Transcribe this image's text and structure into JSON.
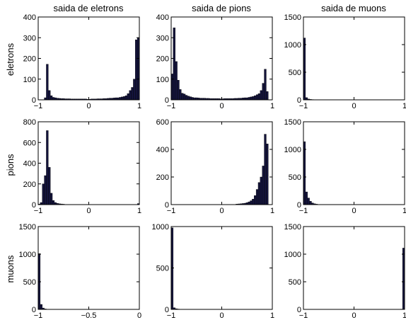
{
  "figure": {
    "col_titles": [
      "saida de eletrons",
      "saida de pions",
      "saida de muons"
    ],
    "row_labels": [
      "eletrons",
      "pions",
      "muons"
    ]
  },
  "chart_data": [
    {
      "type": "bar",
      "row": 0,
      "col": 0,
      "title": "saida de eletrons",
      "ylabel": "eletrons",
      "xlim": [
        -1,
        1
      ],
      "ylim": [
        0,
        400
      ],
      "xticks": [
        "-1",
        "0",
        "1"
      ],
      "yticks": [
        "0",
        "100",
        "200",
        "300",
        "400"
      ],
      "bin_width": 0.04,
      "x": [
        -0.86,
        -0.82,
        -0.78,
        -0.74,
        -0.7,
        -0.66,
        -0.62,
        -0.58,
        -0.54,
        -0.5,
        -0.46,
        -0.42,
        -0.38,
        -0.34,
        -0.3,
        -0.26,
        -0.22,
        -0.18,
        -0.14,
        -0.1,
        -0.06,
        -0.02,
        0.02,
        0.06,
        0.1,
        0.14,
        0.18,
        0.22,
        0.26,
        0.3,
        0.34,
        0.38,
        0.42,
        0.46,
        0.5,
        0.54,
        0.58,
        0.62,
        0.66,
        0.7,
        0.74,
        0.78,
        0.82,
        0.86,
        0.9,
        0.94,
        0.98
      ],
      "values": [
        10,
        172,
        45,
        20,
        12,
        10,
        8,
        7,
        6,
        6,
        5,
        5,
        5,
        4,
        4,
        4,
        4,
        4,
        4,
        4,
        4,
        3,
        3,
        4,
        4,
        4,
        5,
        5,
        5,
        6,
        6,
        7,
        8,
        8,
        9,
        10,
        10,
        12,
        14,
        16,
        20,
        30,
        45,
        60,
        100,
        290,
        300
      ]
    },
    {
      "type": "bar",
      "row": 0,
      "col": 1,
      "title": "saida de pions",
      "xlim": [
        -1,
        1
      ],
      "ylim": [
        0,
        400
      ],
      "xticks": [
        "-1",
        "0",
        "1"
      ],
      "yticks": [
        "0",
        "100",
        "200",
        "300",
        "400"
      ],
      "bin_width": 0.04,
      "x": [
        -0.98,
        -0.94,
        -0.9,
        -0.86,
        -0.82,
        -0.78,
        -0.74,
        -0.7,
        -0.66,
        -0.62,
        -0.58,
        -0.54,
        -0.5,
        -0.46,
        -0.42,
        -0.38,
        -0.34,
        -0.3,
        -0.26,
        -0.22,
        -0.18,
        -0.14,
        -0.1,
        -0.06,
        -0.02,
        0.02,
        0.06,
        0.1,
        0.14,
        0.18,
        0.22,
        0.26,
        0.3,
        0.34,
        0.38,
        0.42,
        0.46,
        0.5,
        0.54,
        0.58,
        0.62,
        0.66,
        0.7,
        0.74,
        0.78,
        0.82,
        0.86,
        0.9
      ],
      "values": [
        125,
        348,
        185,
        95,
        50,
        32,
        28,
        22,
        18,
        15,
        12,
        10,
        10,
        9,
        8,
        8,
        8,
        7,
        7,
        6,
        6,
        6,
        6,
        6,
        5,
        5,
        6,
        6,
        6,
        6,
        6,
        7,
        7,
        8,
        8,
        9,
        10,
        10,
        12,
        14,
        16,
        20,
        25,
        30,
        45,
        80,
        148,
        40
      ]
    },
    {
      "type": "bar",
      "row": 0,
      "col": 2,
      "title": "saida de muons",
      "xlim": [
        -1,
        1
      ],
      "ylim": [
        0,
        1500
      ],
      "xticks": [
        "-1",
        "0",
        "1"
      ],
      "yticks": [
        "0",
        "500",
        "1000",
        "1500"
      ],
      "bin_width": 0.04,
      "x": [
        -0.98,
        -0.94,
        -0.9,
        -0.86,
        -0.82
      ],
      "values": [
        1120,
        40,
        15,
        8,
        5
      ]
    },
    {
      "type": "bar",
      "row": 1,
      "col": 0,
      "ylabel": "pions",
      "xlim": [
        -1,
        1
      ],
      "ylim": [
        0,
        800
      ],
      "xticks": [
        "-1",
        "0",
        "1"
      ],
      "yticks": [
        "0",
        "200",
        "400",
        "600",
        "800"
      ],
      "bin_width": 0.04,
      "x": [
        -0.98,
        -0.94,
        -0.9,
        -0.86,
        -0.82,
        -0.78,
        -0.74,
        -0.7,
        -0.66,
        -0.62,
        -0.58,
        -0.54,
        -0.5,
        0.98
      ],
      "values": [
        5,
        20,
        200,
        280,
        715,
        360,
        110,
        40,
        20,
        12,
        8,
        6,
        4,
        10
      ]
    },
    {
      "type": "bar",
      "row": 1,
      "col": 1,
      "xlim": [
        -1,
        1
      ],
      "ylim": [
        0,
        600
      ],
      "xticks": [
        "-1",
        "0",
        "1"
      ],
      "yticks": [
        "0",
        "200",
        "400",
        "600"
      ],
      "bin_width": 0.04,
      "x": [
        0.3,
        0.34,
        0.38,
        0.42,
        0.46,
        0.5,
        0.54,
        0.58,
        0.62,
        0.66,
        0.7,
        0.74,
        0.78,
        0.82,
        0.86,
        0.9
      ],
      "values": [
        4,
        5,
        6,
        8,
        10,
        14,
        20,
        28,
        40,
        65,
        110,
        160,
        200,
        280,
        510,
        440
      ]
    },
    {
      "type": "bar",
      "row": 1,
      "col": 2,
      "xlim": [
        -1,
        1
      ],
      "ylim": [
        0,
        1500
      ],
      "xticks": [
        "-1",
        "0",
        "1"
      ],
      "yticks": [
        "0",
        "500",
        "1000",
        "1500"
      ],
      "bin_width": 0.04,
      "x": [
        -0.98,
        -0.94,
        -0.9,
        -0.86,
        -0.82,
        -0.78,
        -0.74
      ],
      "values": [
        1140,
        230,
        120,
        60,
        30,
        15,
        8
      ]
    },
    {
      "type": "bar",
      "row": 2,
      "col": 0,
      "ylabel": "muons",
      "xlim": [
        -1,
        0
      ],
      "ylim": [
        0,
        1500
      ],
      "xticks": [
        "-1",
        "-0.5",
        "0"
      ],
      "yticks": [
        "0",
        "500",
        "1000",
        "1500"
      ],
      "bin_width": 0.02,
      "x": [
        -0.99,
        -0.97,
        -0.95,
        -0.93
      ],
      "values": [
        1010,
        90,
        25,
        8
      ]
    },
    {
      "type": "bar",
      "row": 2,
      "col": 1,
      "xlim": [
        -1,
        1
      ],
      "ylim": [
        0,
        1000
      ],
      "xticks": [
        "-1",
        "0",
        "1"
      ],
      "yticks": [
        "0",
        "500",
        "1000"
      ],
      "bin_width": 0.04,
      "x": [
        -0.98,
        -0.94,
        -0.9,
        -0.86
      ],
      "values": [
        985,
        20,
        8,
        4
      ]
    },
    {
      "type": "bar",
      "row": 2,
      "col": 2,
      "xlim": [
        -1,
        1
      ],
      "ylim": [
        0,
        1500
      ],
      "xticks": [
        "-1",
        "0",
        "1"
      ],
      "yticks": [
        "0",
        "500",
        "1000",
        "1500"
      ],
      "bin_width": 0.04,
      "x": [
        0.94,
        0.98
      ],
      "values": [
        5,
        1110
      ]
    }
  ]
}
